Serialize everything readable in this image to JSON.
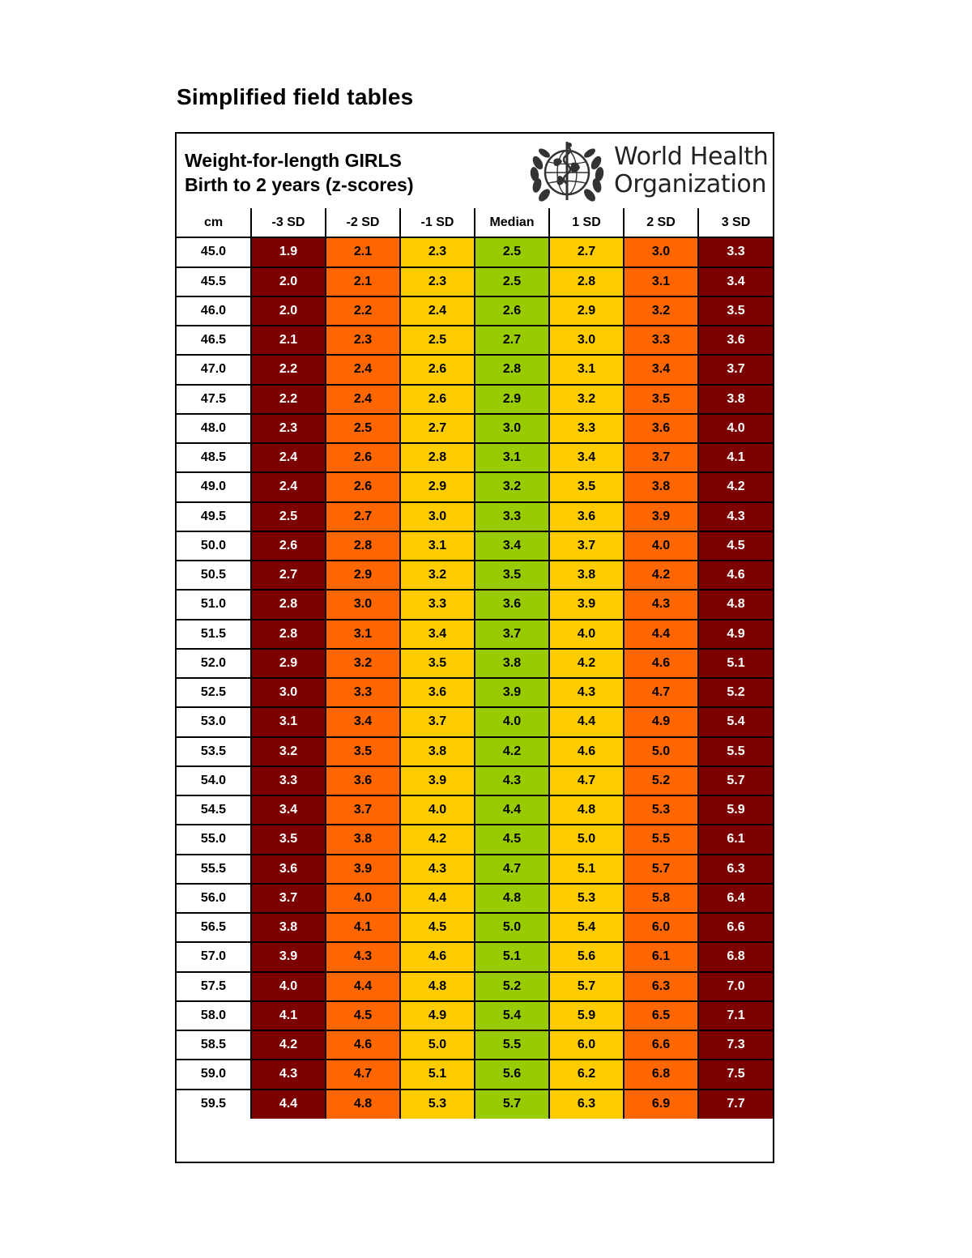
{
  "page_title": "Simplified field tables",
  "table": {
    "title": "Weight-for-length  GIRLS",
    "subtitle": "Birth to 2 years (z-scores)",
    "organization_line1": "World Health",
    "organization_line2": "Organization",
    "logo_icon": "who-emblem-icon",
    "columns": [
      "cm",
      "-3 SD",
      "-2 SD",
      "-1 SD",
      "Median",
      "1 SD",
      "2 SD",
      "3 SD"
    ],
    "colors": {
      "sd3": "#7d0000",
      "sd2": "#ff6600",
      "sd1": "#ffcc00",
      "median": "#99cc00"
    },
    "rows": [
      [
        "45.0",
        "1.9",
        "2.1",
        "2.3",
        "2.5",
        "2.7",
        "3.0",
        "3.3"
      ],
      [
        "45.5",
        "2.0",
        "2.1",
        "2.3",
        "2.5",
        "2.8",
        "3.1",
        "3.4"
      ],
      [
        "46.0",
        "2.0",
        "2.2",
        "2.4",
        "2.6",
        "2.9",
        "3.2",
        "3.5"
      ],
      [
        "46.5",
        "2.1",
        "2.3",
        "2.5",
        "2.7",
        "3.0",
        "3.3",
        "3.6"
      ],
      [
        "47.0",
        "2.2",
        "2.4",
        "2.6",
        "2.8",
        "3.1",
        "3.4",
        "3.7"
      ],
      [
        "47.5",
        "2.2",
        "2.4",
        "2.6",
        "2.9",
        "3.2",
        "3.5",
        "3.8"
      ],
      [
        "48.0",
        "2.3",
        "2.5",
        "2.7",
        "3.0",
        "3.3",
        "3.6",
        "4.0"
      ],
      [
        "48.5",
        "2.4",
        "2.6",
        "2.8",
        "3.1",
        "3.4",
        "3.7",
        "4.1"
      ],
      [
        "49.0",
        "2.4",
        "2.6",
        "2.9",
        "3.2",
        "3.5",
        "3.8",
        "4.2"
      ],
      [
        "49.5",
        "2.5",
        "2.7",
        "3.0",
        "3.3",
        "3.6",
        "3.9",
        "4.3"
      ],
      [
        "50.0",
        "2.6",
        "2.8",
        "3.1",
        "3.4",
        "3.7",
        "4.0",
        "4.5"
      ],
      [
        "50.5",
        "2.7",
        "2.9",
        "3.2",
        "3.5",
        "3.8",
        "4.2",
        "4.6"
      ],
      [
        "51.0",
        "2.8",
        "3.0",
        "3.3",
        "3.6",
        "3.9",
        "4.3",
        "4.8"
      ],
      [
        "51.5",
        "2.8",
        "3.1",
        "3.4",
        "3.7",
        "4.0",
        "4.4",
        "4.9"
      ],
      [
        "52.0",
        "2.9",
        "3.2",
        "3.5",
        "3.8",
        "4.2",
        "4.6",
        "5.1"
      ],
      [
        "52.5",
        "3.0",
        "3.3",
        "3.6",
        "3.9",
        "4.3",
        "4.7",
        "5.2"
      ],
      [
        "53.0",
        "3.1",
        "3.4",
        "3.7",
        "4.0",
        "4.4",
        "4.9",
        "5.4"
      ],
      [
        "53.5",
        "3.2",
        "3.5",
        "3.8",
        "4.2",
        "4.6",
        "5.0",
        "5.5"
      ],
      [
        "54.0",
        "3.3",
        "3.6",
        "3.9",
        "4.3",
        "4.7",
        "5.2",
        "5.7"
      ],
      [
        "54.5",
        "3.4",
        "3.7",
        "4.0",
        "4.4",
        "4.8",
        "5.3",
        "5.9"
      ],
      [
        "55.0",
        "3.5",
        "3.8",
        "4.2",
        "4.5",
        "5.0",
        "5.5",
        "6.1"
      ],
      [
        "55.5",
        "3.6",
        "3.9",
        "4.3",
        "4.7",
        "5.1",
        "5.7",
        "6.3"
      ],
      [
        "56.0",
        "3.7",
        "4.0",
        "4.4",
        "4.8",
        "5.3",
        "5.8",
        "6.4"
      ],
      [
        "56.5",
        "3.8",
        "4.1",
        "4.5",
        "5.0",
        "5.4",
        "6.0",
        "6.6"
      ],
      [
        "57.0",
        "3.9",
        "4.3",
        "4.6",
        "5.1",
        "5.6",
        "6.1",
        "6.8"
      ],
      [
        "57.5",
        "4.0",
        "4.4",
        "4.8",
        "5.2",
        "5.7",
        "6.3",
        "7.0"
      ],
      [
        "58.0",
        "4.1",
        "4.5",
        "4.9",
        "5.4",
        "5.9",
        "6.5",
        "7.1"
      ],
      [
        "58.5",
        "4.2",
        "4.6",
        "5.0",
        "5.5",
        "6.0",
        "6.6",
        "7.3"
      ],
      [
        "59.0",
        "4.3",
        "4.7",
        "5.1",
        "5.6",
        "6.2",
        "6.8",
        "7.5"
      ],
      [
        "59.5",
        "4.4",
        "4.8",
        "5.3",
        "5.7",
        "6.3",
        "6.9",
        "7.7"
      ]
    ]
  }
}
